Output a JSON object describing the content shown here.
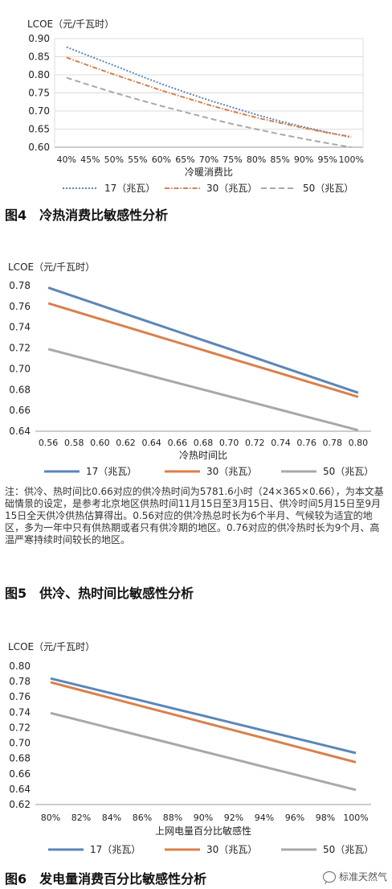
{
  "charts": [
    {
      "type": "line",
      "ylabel": "LCOE（元/千瓦时）",
      "xlabel": "冷暖消费比",
      "x": [
        "40%",
        "45%",
        "50%",
        "55%",
        "60%",
        "65%",
        "70%",
        "75%",
        "80%",
        "85%",
        "90%",
        "95%",
        "100%"
      ],
      "yticks": [
        "0.90",
        "0.85",
        "0.80",
        "0.75",
        "0.70",
        "0.65",
        "0.60"
      ],
      "ylim": [
        0.6,
        0.9
      ],
      "grid": true,
      "legend_position": "bottom",
      "series": [
        {
          "name": "17（兆瓦）",
          "values": [
            0.877,
            0.851,
            0.826,
            0.8,
            0.775,
            0.752,
            0.73,
            0.71,
            0.69,
            0.672,
            0.656,
            0.641,
            0.627
          ],
          "color": "#5b86b8",
          "style": "dotted"
        },
        {
          "name": "30（兆瓦）",
          "values": [
            0.848,
            0.824,
            0.801,
            0.779,
            0.757,
            0.737,
            0.717,
            0.699,
            0.682,
            0.667,
            0.653,
            0.64,
            0.629
          ],
          "color": "#d9804a",
          "style": "dashdot"
        },
        {
          "name": "50（兆瓦）",
          "values": [
            0.792,
            0.771,
            0.751,
            0.732,
            0.714,
            0.697,
            0.68,
            0.664,
            0.65,
            0.636,
            0.623,
            0.611,
            0.6
          ],
          "color": "#a8a8a8",
          "style": "dashed"
        }
      ]
    },
    {
      "type": "line",
      "ylabel": "LCOE（元/千瓦时）",
      "xlabel": "冷热时间比",
      "x": [
        "0.56",
        "0.58",
        "0.60",
        "0.62",
        "0.64",
        "0.66",
        "0.68",
        "0.70",
        "0.72",
        "0.74",
        "0.76",
        "0.78",
        "0.80"
      ],
      "yticks": [
        "0.78",
        "0.76",
        "0.74",
        "0.72",
        "0.70",
        "0.68",
        "0.66",
        "0.64"
      ],
      "ylim": [
        0.64,
        0.78
      ],
      "grid": false,
      "legend_position": "bottom",
      "series": [
        {
          "name": "17（兆瓦）",
          "values": [
            0.778,
            0.7696,
            0.7612,
            0.7527,
            0.7443,
            0.7359,
            0.7275,
            0.7191,
            0.7107,
            0.7022,
            0.6938,
            0.6854,
            0.677
          ],
          "color": "#5b86b8",
          "style": "solid"
        },
        {
          "name": "30（兆瓦）",
          "values": [
            0.763,
            0.7555,
            0.748,
            0.7405,
            0.733,
            0.7255,
            0.718,
            0.7105,
            0.703,
            0.6955,
            0.688,
            0.6805,
            0.673
          ],
          "color": "#d9804a",
          "style": "solid"
        },
        {
          "name": "50（兆瓦）",
          "values": [
            0.719,
            0.7125,
            0.706,
            0.6995,
            0.693,
            0.6865,
            0.68,
            0.6735,
            0.667,
            0.6605,
            0.654,
            0.6475,
            0.641
          ],
          "color": "#a8a8a8",
          "style": "solid"
        }
      ]
    },
    {
      "type": "line",
      "ylabel": "LCOE（元/千瓦时）",
      "xlabel": "上网电量百分比敏感性",
      "x": [
        "80%",
        "82%",
        "84%",
        "86%",
        "88%",
        "90%",
        "92%",
        "94%",
        "96%",
        "98%",
        "100%"
      ],
      "yticks": [
        "0.80",
        "0.78",
        "0.76",
        "0.74",
        "0.72",
        "0.70",
        "0.68",
        "0.66",
        "0.64",
        "0.62"
      ],
      "ylim": [
        0.62,
        0.8
      ],
      "grid": false,
      "legend_position": "bottom",
      "series": [
        {
          "name": "17（兆瓦）",
          "values": [
            0.784,
            0.7743,
            0.7646,
            0.7549,
            0.7452,
            0.7355,
            0.7258,
            0.7161,
            0.7064,
            0.6967,
            0.687
          ],
          "color": "#5b86b8",
          "style": "solid"
        },
        {
          "name": "30（兆瓦）",
          "values": [
            0.779,
            0.7686,
            0.7582,
            0.7478,
            0.7374,
            0.727,
            0.7166,
            0.7062,
            0.6958,
            0.6854,
            0.675
          ],
          "color": "#d9804a",
          "style": "solid"
        },
        {
          "name": "50（兆瓦）",
          "values": [
            0.739,
            0.729,
            0.719,
            0.709,
            0.699,
            0.689,
            0.679,
            0.669,
            0.659,
            0.649,
            0.639
          ],
          "color": "#a8a8a8",
          "style": "solid"
        }
      ]
    }
  ],
  "captions": {
    "fig4": "图4　冷热消费比敏感性分析",
    "fig5": "图5　供冷、热时间比敏感性分析",
    "fig6": "图6　发电量消费百分比敏感性分析"
  },
  "note": "注：供冷、热时间比0.66对应的供冷热时间为5781.6小时（24×365×0.66），为本文基础情景的设定，是参考北京地区供热时间11月15日至3月15日、供冷时间5月15日至9月15日全天供冷供热估算得出。0.56对应的供冷热总时长为6个半月、气候较为适宜的地区，多为一年中只有供热期或者只有供冷期的地区。0.76对应的供冷热时长为9个月、高温严寒持续时间较长的地区。",
  "watermark": "标准天然气"
}
